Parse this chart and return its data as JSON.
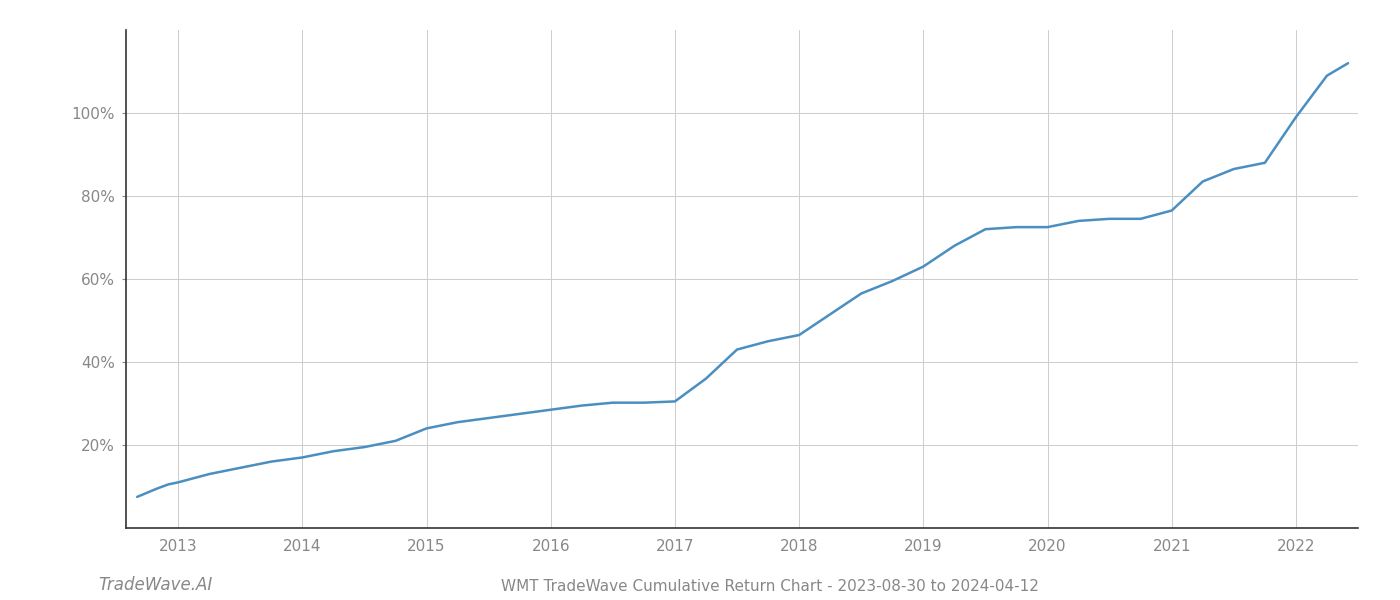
{
  "title": "WMT TradeWave Cumulative Return Chart - 2023-08-30 to 2024-04-12",
  "watermark": "TradeWave.AI",
  "line_color": "#4a8fc0",
  "background_color": "#ffffff",
  "grid_color": "#cccccc",
  "x_years": [
    2013,
    2014,
    2015,
    2016,
    2017,
    2018,
    2019,
    2020,
    2021,
    2022
  ],
  "x_data": [
    2012.67,
    2012.75,
    2012.83,
    2012.92,
    2013.0,
    2013.25,
    2013.5,
    2013.75,
    2014.0,
    2014.25,
    2014.5,
    2014.75,
    2015.0,
    2015.25,
    2015.5,
    2015.75,
    2016.0,
    2016.25,
    2016.5,
    2016.75,
    2017.0,
    2017.25,
    2017.5,
    2017.75,
    2018.0,
    2018.25,
    2018.5,
    2018.75,
    2019.0,
    2019.25,
    2019.5,
    2019.75,
    2020.0,
    2020.25,
    2020.5,
    2020.75,
    2021.0,
    2021.25,
    2021.5,
    2021.75,
    2022.0,
    2022.25,
    2022.42
  ],
  "y_data": [
    7.5,
    8.5,
    9.5,
    10.5,
    11.0,
    13.0,
    14.5,
    16.0,
    17.0,
    18.5,
    19.5,
    21.0,
    24.0,
    25.5,
    26.5,
    27.5,
    28.5,
    29.5,
    30.2,
    30.2,
    30.5,
    36.0,
    43.0,
    45.0,
    46.5,
    51.5,
    56.5,
    59.5,
    63.0,
    68.0,
    72.0,
    72.5,
    72.5,
    74.0,
    74.5,
    74.5,
    76.5,
    83.5,
    86.5,
    88.0,
    99.0,
    109.0,
    112.0
  ],
  "yticks": [
    20,
    40,
    60,
    80,
    100
  ],
  "ytick_labels": [
    "20%",
    "40%",
    "60%",
    "80%",
    "100%"
  ],
  "xlim": [
    2012.58,
    2022.5
  ],
  "ylim": [
    0,
    120
  ],
  "line_width": 1.8,
  "title_fontsize": 11,
  "watermark_fontsize": 12,
  "tick_fontsize": 11,
  "spine_color": "#333333"
}
